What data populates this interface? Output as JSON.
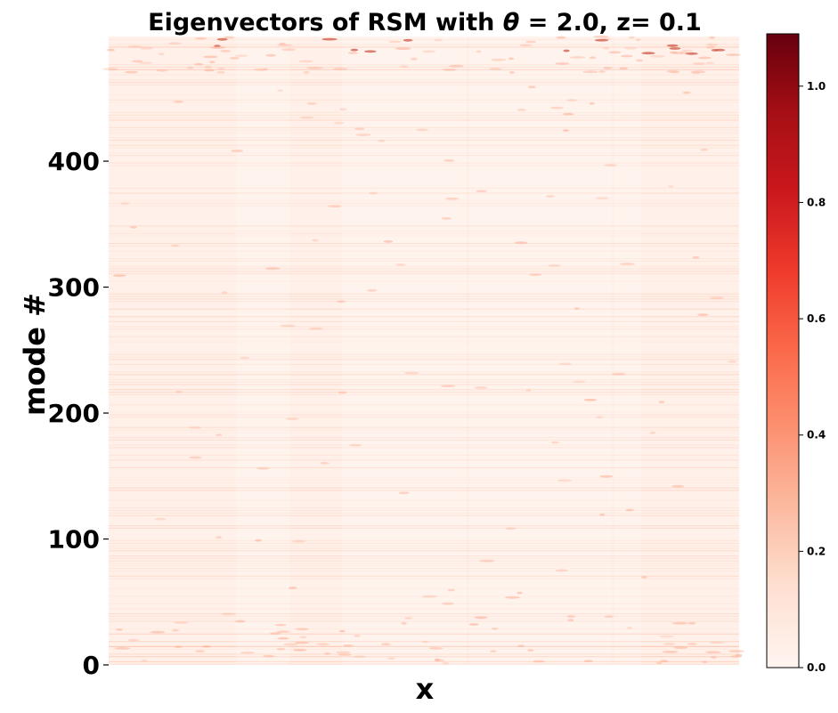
{
  "chart_data": {
    "type": "heatmap",
    "title_parts": [
      "Eigenvectors of RSM with ",
      "θ",
      " = 2.0, z= 0.1"
    ],
    "xlabel": "x",
    "ylabel": "mode #",
    "y_ticks": [
      "0",
      "100",
      "200",
      "300",
      "400"
    ],
    "y_tick_values": [
      0,
      100,
      200,
      300,
      400
    ],
    "ylim": [
      0,
      499
    ],
    "x_ticks": [],
    "colormap": "Reds",
    "colorbar": {
      "ticks": [
        "0.0",
        "0.2",
        "0.4",
        "0.6",
        "0.8",
        "1.0"
      ],
      "tick_values": [
        0.0,
        0.2,
        0.4,
        0.6,
        0.8,
        1.0
      ],
      "range": [
        0.0,
        1.09
      ]
    },
    "colors": [
      "#fff5f0",
      "#fee0d2",
      "#fcbba1",
      "#fc9272",
      "#fb6a4a",
      "#ef3b2c",
      "#cb181d",
      "#a50f15",
      "#67000d"
    ],
    "typical_value": 0.05,
    "max_values_near": "top rows (mode ~495)"
  }
}
